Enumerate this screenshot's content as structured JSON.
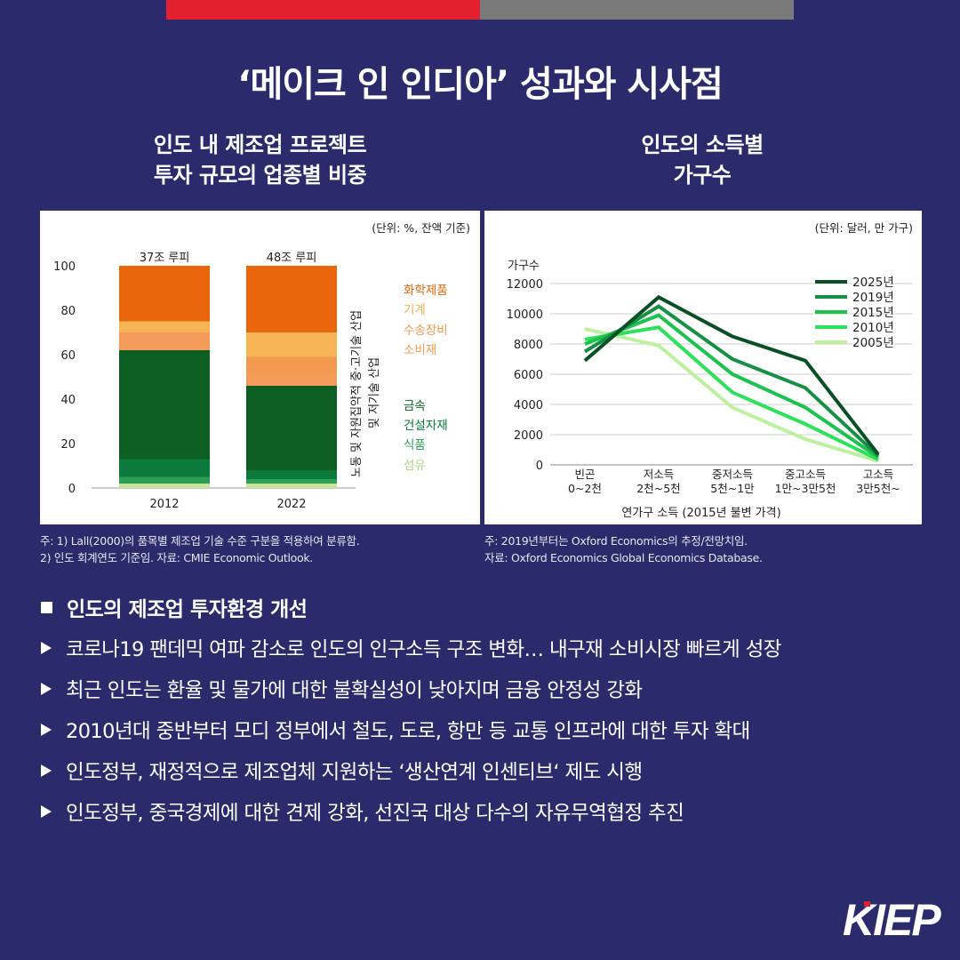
{
  "header": {
    "title": "‘메이크 인 인디아’ 성과와 시사점",
    "bar_colors": [
      "#e3202e",
      "#7a7a7a"
    ]
  },
  "left_panel": {
    "title_lines": [
      "인도 내 제조업 프로젝트",
      "투자 규모의 업종별 비중"
    ],
    "notes": [
      "주: 1) Lall(2000)의 품목별 제조업 기술 수준 구분을 적용하여 분류함.",
      " 2) 인도 회계연도 기준임. 자료: CMIE Economic Outlook."
    ]
  },
  "right_panel": {
    "title_lines": [
      "인도의 소득별",
      "가구수"
    ],
    "notes": [
      "주: 2019년부터는 Oxford Economics의 추정/전망치임.",
      "자료: Oxford Economics Global Economics Database."
    ]
  },
  "chart_data": [
    {
      "type": "bar",
      "stacked": true,
      "unit": "(단위: %, 잔액 기준)",
      "categories": [
        "2012",
        "2022"
      ],
      "bar_labels": [
        "37조 루피",
        "48조 루피"
      ],
      "ylim": [
        0,
        100
      ],
      "yticks": [
        0,
        20,
        40,
        60,
        80,
        100
      ],
      "group_labels": [
        "노동 및 자원집약적 중·고기술 산업",
        "및 저기술 산업"
      ],
      "series": [
        {
          "name": "섬유",
          "color": "#c8e39a",
          "values": [
            2,
            2
          ]
        },
        {
          "name": "식품",
          "color": "#2e9e55",
          "values": [
            3,
            2
          ]
        },
        {
          "name": "건설자재",
          "color": "#0b7a3b",
          "values": [
            8,
            4
          ]
        },
        {
          "name": "금속",
          "color": "#0d5e23",
          "values": [
            49,
            38
          ]
        },
        {
          "name": "소비재",
          "color": "#f39c5a",
          "values": [
            8,
            6
          ]
        },
        {
          "name": "수송장비",
          "color": "#f0994f",
          "values": [
            0,
            7
          ]
        },
        {
          "name": "기계",
          "color": "#f6b455",
          "values": [
            5,
            11
          ]
        },
        {
          "name": "화학제품",
          "color": "#e8670c",
          "values": [
            25,
            30
          ]
        }
      ],
      "legend": [
        {
          "name": "화학제품",
          "color": "#e8670c"
        },
        {
          "name": "기계",
          "color": "#f6b455"
        },
        {
          "name": "수송장비",
          "color": "#f0994f"
        },
        {
          "name": "소비재",
          "color": "#f39c5a"
        },
        {
          "name": "금속",
          "color": "#0d5e23"
        },
        {
          "name": "건설자재",
          "color": "#0b7a3b"
        },
        {
          "name": "식품",
          "color": "#2e9e55"
        },
        {
          "name": "섬유",
          "color": "#a9d88a"
        }
      ]
    },
    {
      "type": "line",
      "unit": "(단위: 달러, 만 가구)",
      "ylabel": "가구수",
      "xlabel": "연가구 소득 (2015년 불변 가격)",
      "categories": [
        [
          "빈곤",
          "0~2천"
        ],
        [
          "저소득",
          "2천~5천"
        ],
        [
          "중저소득",
          "5천~1만"
        ],
        [
          "중고소득",
          "1만~3만5천"
        ],
        [
          "고소득",
          "3만5천~"
        ]
      ],
      "ylim": [
        0,
        12000
      ],
      "yticks": [
        0,
        2000,
        4000,
        6000,
        8000,
        10000,
        12000
      ],
      "series": [
        {
          "name": "2025년",
          "color": "#0a4f25",
          "values": [
            6900,
            11100,
            8500,
            6900,
            700
          ]
        },
        {
          "name": "2019년",
          "color": "#178f44",
          "values": [
            7500,
            10500,
            7000,
            5100,
            600
          ]
        },
        {
          "name": "2015년",
          "color": "#1cc24f",
          "values": [
            8000,
            9900,
            6000,
            3800,
            500
          ]
        },
        {
          "name": "2010년",
          "color": "#2fe05c",
          "values": [
            8300,
            9100,
            4800,
            2700,
            350
          ]
        },
        {
          "name": "2005년",
          "color": "#bff0a0",
          "values": [
            9000,
            7900,
            3800,
            1700,
            250
          ]
        }
      ]
    }
  ],
  "section": {
    "heading": "인도의 제조업 투자환경 개선",
    "bullets": [
      "코로나19 팬데믹 여파 감소로 인도의 인구소득 구조 변화… 내구재 소비시장 빠르게 성장",
      "최근 인도는 환율 및 물가에 대한 불확실성이 낮아지며 금융 안정성 강화",
      "2010년대 중반부터 모디 정부에서 철도, 도로, 항만 등 교통 인프라에 대한 투자 확대",
      "인도정부, 재정적으로 제조업체 지원하는 ‘생산연계 인센티브‘ 제도 시행",
      "인도정부, 중국경제에 대한 견제 강화, 선진국 대상 다수의 자유무역협정 추진"
    ]
  },
  "logo": {
    "text": "KIEP",
    "accent": "#e3202e"
  }
}
